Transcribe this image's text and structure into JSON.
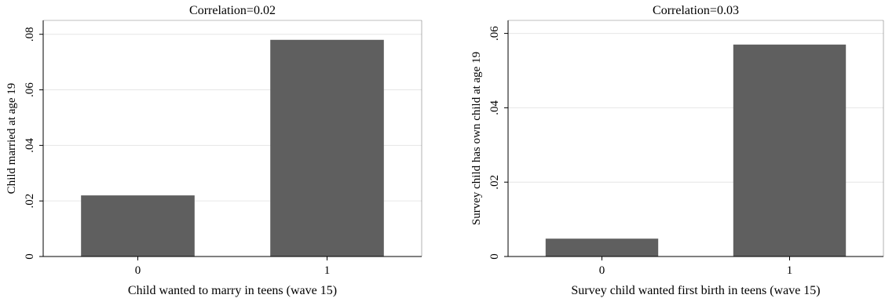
{
  "chart_data": [
    {
      "type": "bar",
      "title": "Correlation=0.02",
      "xlabel": "Child wanted to marry in teens (wave 15)",
      "ylabel": "Child married at age 19",
      "categories": [
        "0",
        "1"
      ],
      "values": [
        0.022,
        0.078
      ],
      "ylim": [
        0,
        0.085
      ],
      "yticks": [
        0,
        0.02,
        0.04,
        0.06,
        0.08
      ],
      "ytick_labels": [
        "0",
        ".02",
        ".04",
        ".06",
        ".08"
      ],
      "grid": true,
      "bar_color": "#5f5f5f"
    },
    {
      "type": "bar",
      "title": "Correlation=0.03",
      "xlabel": "Survey child wanted first birth in teens (wave 15)",
      "ylabel": "Survey child has own child at age 19",
      "categories": [
        "0",
        "1"
      ],
      "values": [
        0.0048,
        0.057
      ],
      "ylim": [
        0,
        0.0635
      ],
      "yticks": [
        0,
        0.02,
        0.04,
        0.06
      ],
      "ytick_labels": [
        "0",
        ".02",
        ".04",
        ".06"
      ],
      "grid": true,
      "bar_color": "#5f5f5f"
    }
  ]
}
